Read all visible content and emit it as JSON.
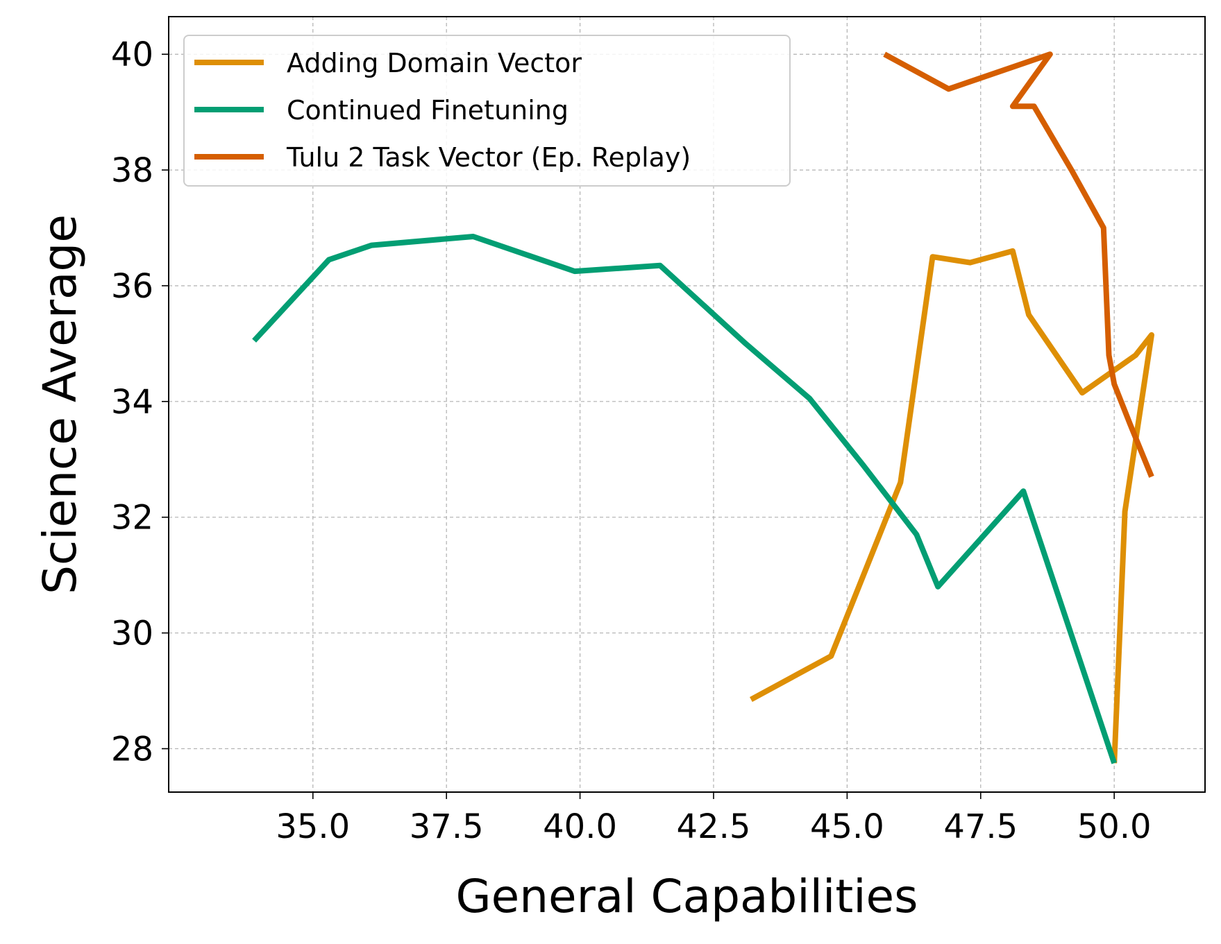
{
  "chart_data": {
    "type": "line",
    "title": "",
    "xlabel": "General Capabilities",
    "ylabel": "Science Average",
    "xlim": [
      32.3,
      51.7
    ],
    "ylim": [
      27.25,
      40.65
    ],
    "xticks": [
      "35.0",
      "37.5",
      "40.0",
      "42.5",
      "45.0",
      "47.5",
      "50.0"
    ],
    "yticks": [
      "28",
      "30",
      "32",
      "34",
      "36",
      "38",
      "40"
    ],
    "grid": true,
    "legend_position": "upper-left",
    "series": [
      {
        "name": "Adding Domain Vector",
        "color": "#DE8F05",
        "x": [
          43.2,
          44.7,
          46.0,
          46.6,
          47.3,
          48.1,
          48.4,
          49.4,
          50.4,
          50.7,
          50.2,
          50.0
        ],
        "y": [
          28.85,
          29.6,
          32.6,
          36.5,
          36.4,
          36.6,
          35.5,
          34.15,
          34.8,
          35.15,
          32.1,
          27.75
        ]
      },
      {
        "name": "Continued Finetuning",
        "color": "#029E73",
        "x": [
          33.9,
          35.3,
          36.1,
          38.0,
          39.9,
          41.5,
          43.1,
          44.3,
          45.3,
          46.3,
          46.7,
          48.3,
          50.0
        ],
        "y": [
          35.05,
          36.45,
          36.7,
          36.85,
          36.25,
          36.35,
          35.0,
          34.05,
          32.9,
          31.7,
          30.8,
          32.45,
          27.75
        ]
      },
      {
        "name": "Tulu 2 Task Vector (Ep. Replay)",
        "color": "#D55E00",
        "x": [
          45.7,
          46.9,
          48.8,
          48.1,
          48.5,
          49.2,
          49.8,
          49.9,
          50.0,
          50.3,
          50.7
        ],
        "y": [
          40.0,
          39.4,
          40.0,
          39.1,
          39.1,
          38.0,
          37.0,
          34.8,
          34.3,
          33.6,
          32.7
        ]
      }
    ]
  }
}
